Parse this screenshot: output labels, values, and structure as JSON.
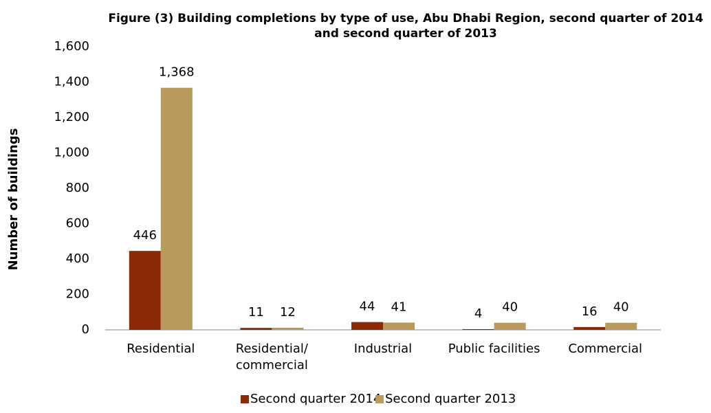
{
  "chart_data": {
    "type": "bar",
    "title": "Figure (3) Building completions by type of use, Abu Dhabi Region, second quarter of 2014 and second quarter of 2013",
    "y_label": "Number of buildings",
    "categories": [
      "Residential",
      "Residential/\ncommercial",
      "Industrial",
      "Public facilities",
      "Commercial"
    ],
    "series": [
      {
        "name": "Second quarter 2014",
        "color": "#8b2a07",
        "values": [
          446,
          11,
          44,
          4,
          16
        ]
      },
      {
        "name": "Second quarter 2013",
        "color": "#b89a5c",
        "values": [
          1368,
          12,
          41,
          40,
          40
        ],
        "value_labels": [
          "1,368",
          "12",
          "41",
          "40",
          "40"
        ]
      }
    ],
    "ylim": [
      0,
      1600
    ],
    "yticks": [
      0,
      200,
      400,
      600,
      800,
      {
        "value": 1000,
        "label": "1,000"
      },
      {
        "value": 1200,
        "label": "1,200"
      },
      {
        "value": 1400,
        "label": "1,400"
      },
      {
        "value": 1600,
        "label": "1,600"
      }
    ],
    "grid": false,
    "legend": "bottom"
  }
}
